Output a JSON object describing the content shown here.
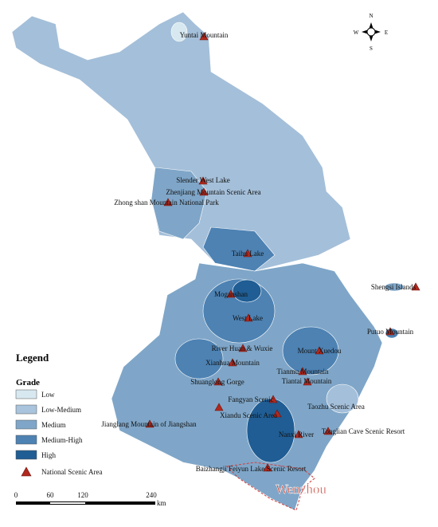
{
  "legend": {
    "title": "Legend",
    "grade_title": "Grade",
    "items": [
      "Low",
      "Low-Medium",
      "Medium",
      "Medium-High",
      "High"
    ],
    "scenic": "National Scenic Area"
  },
  "compass": {
    "n": "N",
    "e": "E",
    "s": "S",
    "w": "W"
  },
  "scale_bar": {
    "ticks": [
      0,
      60,
      120,
      240
    ],
    "unit": "km"
  },
  "places": [
    "Yuntai Mountain",
    "Slender West Lake",
    "Zhenjiang Mountain Scenic Area",
    "Zhong shan Mountain National Park",
    "Taihu Lake",
    "Moganshan",
    "West Lake",
    "River Huan & Wuxie",
    "Xianhua Mountain",
    "Mount Xuedou",
    "Shengsi Islands",
    "Putuo Mountain",
    "Tianmu Mountain",
    "Tiantai Mountain",
    "Shuanglong Gorge",
    "Fangyan Scenic",
    "Xiandu Scenic Area",
    "Taozhu Scenic Area",
    "Jianglang Mountain of Jiangshan",
    "Nanxi River",
    "Tonglian Cave Scenic Resort",
    "Baizhangji Feiyun Lake Scenic Resort"
  ],
  "city": "Wenzhou"
}
